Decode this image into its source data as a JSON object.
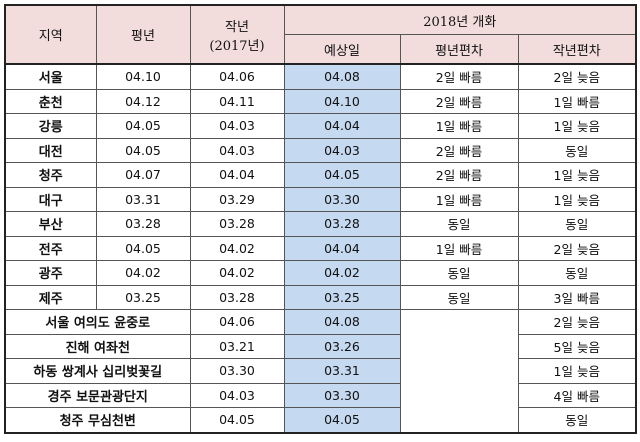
{
  "header": {
    "region": "지역",
    "normal": "평년",
    "last_year_line1": "작년",
    "last_year_line2": "(2017년)",
    "bloom_2018": "2018년 개화",
    "forecast": "예상일",
    "vs_normal": "평년편차",
    "vs_last_year": "작년편차"
  },
  "rows": [
    {
      "region": "서울",
      "normal": "04.10",
      "last_year": "04.06",
      "forecast": "04.08",
      "vs_normal": "2일 빠름",
      "vs_last_year": "2일 늦음"
    },
    {
      "region": "춘천",
      "normal": "04.12",
      "last_year": "04.11",
      "forecast": "04.10",
      "vs_normal": "2일 빠름",
      "vs_last_year": "1일 빠름"
    },
    {
      "region": "강릉",
      "normal": "04.05",
      "last_year": "04.03",
      "forecast": "04.04",
      "vs_normal": "1일 빠름",
      "vs_last_year": "1일 늦음"
    },
    {
      "region": "대전",
      "normal": "04.05",
      "last_year": "04.03",
      "forecast": "04.03",
      "vs_normal": "2일 빠름",
      "vs_last_year": "동일"
    },
    {
      "region": "청주",
      "normal": "04.07",
      "last_year": "04.04",
      "forecast": "04.05",
      "vs_normal": "2일 빠름",
      "vs_last_year": "1일 늦음"
    },
    {
      "region": "대구",
      "normal": "03.31",
      "last_year": "03.29",
      "forecast": "03.30",
      "vs_normal": "1일 빠름",
      "vs_last_year": "1일 늦음"
    },
    {
      "region": "부산",
      "normal": "03.28",
      "last_year": "03.28",
      "forecast": "03.28",
      "vs_normal": "동일",
      "vs_last_year": "동일"
    },
    {
      "region": "전주",
      "normal": "04.05",
      "last_year": "04.02",
      "forecast": "04.04",
      "vs_normal": "1일 빠름",
      "vs_last_year": "2일 늦음"
    },
    {
      "region": "광주",
      "normal": "04.02",
      "last_year": "04.02",
      "forecast": "04.02",
      "vs_normal": "동일",
      "vs_last_year": "동일"
    },
    {
      "region": "제주",
      "normal": "03.25",
      "last_year": "03.28",
      "forecast": "03.25",
      "vs_normal": "동일",
      "vs_last_year": "3일 빠름"
    }
  ],
  "spots": [
    {
      "name": "서울 여의도 윤중로",
      "last_year": "04.06",
      "forecast": "04.08",
      "vs_last_year": "2일 늦음"
    },
    {
      "name": "진해 여좌천",
      "last_year": "03.21",
      "forecast": "03.26",
      "vs_last_year": "5일 늦음"
    },
    {
      "name": "하동 쌍계사 십리벚꽃길",
      "last_year": "03.30",
      "forecast": "03.31",
      "vs_last_year": "1일 늦음"
    },
    {
      "name": "경주 보문관광단지",
      "last_year": "04.03",
      "forecast": "03.30",
      "vs_last_year": "4일 빠름"
    },
    {
      "name": "청주 무심천변",
      "last_year": "04.05",
      "forecast": "04.05",
      "vs_last_year": "동일"
    }
  ],
  "colors": {
    "header_bg": "#f2dcdc",
    "forecast_bg": "#c5d9f1"
  }
}
